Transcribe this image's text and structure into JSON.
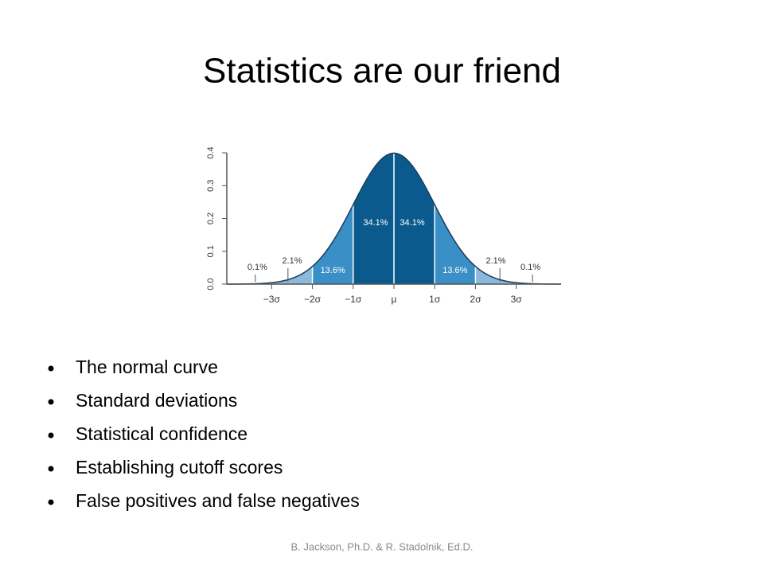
{
  "title": "Statistics are our friend",
  "chart": {
    "type": "area",
    "xlim": [
      -4.1,
      4.1
    ],
    "ylim": [
      0,
      0.4
    ],
    "xticks": [
      {
        "value": -3,
        "label": "−3σ"
      },
      {
        "value": -2,
        "label": "−2σ"
      },
      {
        "value": -1,
        "label": "−1σ"
      },
      {
        "value": 0,
        "label": "μ"
      },
      {
        "value": 1,
        "label": "1σ"
      },
      {
        "value": 2,
        "label": "2σ"
      },
      {
        "value": 3,
        "label": "3σ"
      }
    ],
    "yticks": [
      {
        "value": 0,
        "label": "0.0"
      },
      0.1,
      0.2,
      0.3,
      0.4
    ],
    "values": [
      0.1,
      2.1,
      13.6,
      34.1,
      34.1,
      13.6,
      2.1,
      0.1
    ],
    "value_labels": [
      "0.1%",
      "2.1%",
      "13.6%",
      "34.1%",
      "34.1%",
      "13.6%",
      "2.1%",
      "0.1%"
    ],
    "colors": [
      "#c3d8ea",
      "#8bb9dc",
      "#3a8fc6",
      "#0b5a8e",
      "#0b5a8e",
      "#3a8fc6",
      "#8bb9dc",
      "#c3d8ea"
    ]
  },
  "bullets": [
    "The normal curve",
    "Standard deviations",
    "Statistical confidence",
    "Establishing cutoff scores",
    "False positives and false negatives"
  ],
  "footer": "B. Jackson, Ph.D. & R. Stadolnik, Ed.D."
}
